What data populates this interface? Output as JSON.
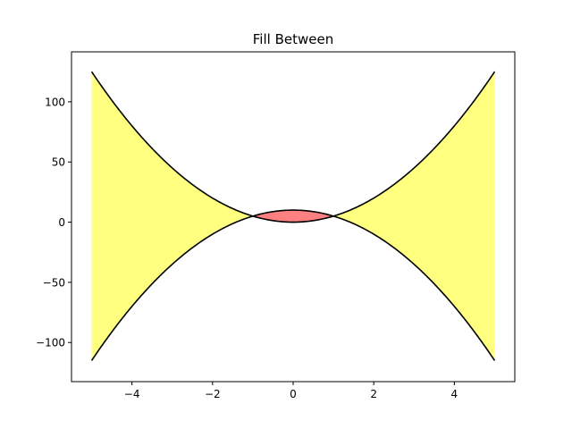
{
  "chart_data": {
    "type": "area",
    "title": "Fill Between",
    "xlabel": "",
    "ylabel": "",
    "xlim": [
      -5.5,
      5.5
    ],
    "ylim": [
      -132.5,
      141.5
    ],
    "grid": false,
    "x_range": [
      -5,
      5
    ],
    "x_ticks": [
      -4,
      -2,
      0,
      2,
      4
    ],
    "x_tick_labels": [
      "−4",
      "−2",
      "0",
      "2",
      "4"
    ],
    "y_ticks": [
      -100,
      -50,
      0,
      50,
      100
    ],
    "y_tick_labels": [
      "−100",
      "−50",
      "0",
      "50",
      "100"
    ],
    "series": [
      {
        "key": "upper",
        "formula": "5*x^2",
        "x": [
          -5,
          -4,
          -3,
          -2,
          -1,
          0,
          1,
          2,
          3,
          4,
          5
        ],
        "values": [
          125,
          80,
          45,
          20,
          5,
          0,
          5,
          20,
          45,
          80,
          125
        ],
        "color": "#000000"
      },
      {
        "key": "lower",
        "formula": "10 - 5*x^2",
        "x": [
          -5,
          -4,
          -3,
          -2,
          -1,
          0,
          1,
          2,
          3,
          4,
          5
        ],
        "values": [
          -115,
          -70,
          -35,
          -10,
          5,
          10,
          5,
          -10,
          -35,
          -70,
          -115
        ],
        "color": "#000000"
      }
    ],
    "fills": [
      {
        "where": "upper >= lower",
        "color": "#ffff80"
      },
      {
        "where": "upper < lower",
        "color": "#ff8080"
      }
    ],
    "colors": {
      "outer_fill": "#ffff80",
      "inner_fill": "#ff8080",
      "line": "#000000",
      "axes": "#000000"
    }
  }
}
